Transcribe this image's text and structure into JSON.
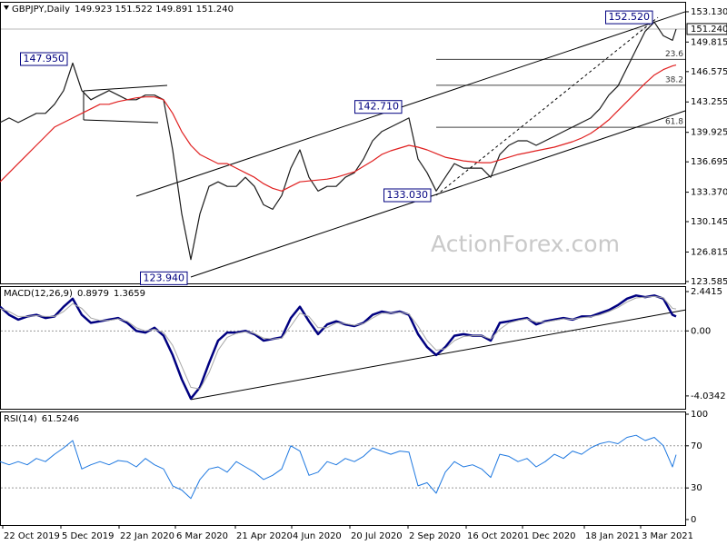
{
  "chart_data": [
    {
      "type": "line",
      "title": "GBPJPY,Daily",
      "subtitle": "149.923 151.522 149.891 151.240",
      "x": [
        0,
        5,
        10,
        15,
        20,
        25,
        30,
        35,
        40,
        45,
        50,
        55,
        60,
        65,
        70,
        75,
        80,
        85,
        90,
        95,
        100,
        105,
        110,
        115,
        120,
        125,
        130,
        135,
        140,
        145,
        150,
        155,
        160,
        165,
        170,
        175,
        180,
        185,
        190,
        195,
        200,
        205,
        210,
        215,
        220,
        225,
        230,
        235,
        240,
        245,
        250,
        255,
        260,
        265,
        270,
        275,
        280,
        285,
        290,
        295,
        300,
        305,
        310,
        315,
        320,
        325,
        330,
        335,
        340,
        345,
        350,
        355,
        360,
        365,
        370,
        372
      ],
      "xlim": [
        0,
        377
      ],
      "series": [
        {
          "color": "#1b1b1b",
          "width": 1.2,
          "values": [
            141,
            141.5,
            141,
            141.5,
            142,
            142,
            143,
            144.5,
            147.5,
            144.5,
            143.5,
            144,
            144.5,
            144,
            143.5,
            143.5,
            144,
            144,
            143.5,
            138,
            131,
            126,
            131,
            134,
            134.5,
            134,
            134,
            135,
            134,
            132,
            131.5,
            133,
            136,
            138,
            135,
            133.5,
            134,
            134,
            135,
            135.5,
            137,
            139,
            140,
            140.5,
            141,
            141.5,
            137,
            135.5,
            133.5,
            135,
            136.5,
            136,
            136,
            136,
            135,
            137.5,
            138.5,
            139,
            139,
            138.5,
            139,
            139.5,
            140,
            140.5,
            141,
            141.5,
            142.5,
            144,
            145,
            147,
            149,
            151,
            152,
            150.5,
            150,
            151.24
          ]
        },
        {
          "color": "#e02020",
          "width": 1.2,
          "values": [
            134.5,
            135.5,
            136.5,
            137.5,
            138.5,
            139.5,
            140.5,
            141,
            141.5,
            142,
            142.5,
            143,
            143,
            143.3,
            143.5,
            143.7,
            143.8,
            143.8,
            143.5,
            142,
            140,
            138.5,
            137.5,
            137,
            136.5,
            136.5,
            136,
            135.5,
            135,
            134.3,
            133.8,
            133.5,
            134,
            134.5,
            134.6,
            134.7,
            134.8,
            135,
            135.3,
            135.6,
            136.2,
            136.8,
            137.5,
            137.9,
            138.2,
            138.5,
            138.3,
            138,
            137.6,
            137.2,
            137,
            136.8,
            136.7,
            136.6,
            136.6,
            136.9,
            137.2,
            137.5,
            137.7,
            137.9,
            138.1,
            138.3,
            138.6,
            138.9,
            139.3,
            139.8,
            140.5,
            141.3,
            142.3,
            143.3,
            144.3,
            145.3,
            146.2,
            146.8,
            147.2,
            147.3
          ]
        }
      ],
      "ylim": [
        123.38,
        154.22
      ],
      "yticks": [
        {
          "value": 153.13,
          "label": "153.130"
        },
        149.815,
        146.575,
        143.255,
        139.925,
        136.695,
        {
          "value": 133.37,
          "label": "133.370"
        },
        130.145,
        126.815,
        123.585
      ],
      "current_price": {
        "value": 151.24,
        "label": "151.240"
      },
      "annotations": [
        {
          "value": 147.95,
          "label": "147.950",
          "x": 40
        },
        {
          "value": 123.94,
          "label": "123.940",
          "x": 106
        },
        {
          "value": 142.71,
          "label": "142.710",
          "x": 224
        },
        {
          "value": 133.03,
          "label": "133.030",
          "x": 240
        },
        {
          "value": 152.52,
          "label": "152.520",
          "x": 362
        }
      ],
      "fib": {
        "x": [
          240,
          377
        ],
        "levels": [
          {
            "ratio": 23.6,
            "price": 147.92
          },
          {
            "ratio": 38.2,
            "price": 145.075
          },
          {
            "ratio": 61.8,
            "price": 140.48
          }
        ]
      },
      "lines": [
        {
          "x": [
            75,
            377
          ],
          "values": [
            132.93,
            153.13
          ]
        },
        {
          "x": [
            105,
            377
          ],
          "values": [
            124.08,
            142.28
          ]
        },
        {
          "x": [
            240,
            362
          ],
          "values": [
            133.03,
            152.52
          ],
          "dash": true
        },
        {
          "x": [
            46,
            92
          ],
          "values": [
            144.47,
            145.07
          ]
        },
        {
          "x": [
            46,
            87
          ],
          "values": [
            141.29,
            140.99
          ]
        },
        {
          "x": [
            46,
            46
          ],
          "values": [
            144.47,
            141.29
          ]
        }
      ],
      "watermark": "ActionForex.com"
    },
    {
      "type": "line",
      "title": "MACD(12,26,9)",
      "x": [
        0,
        5,
        10,
        15,
        20,
        25,
        30,
        35,
        40,
        45,
        50,
        55,
        60,
        65,
        70,
        75,
        80,
        85,
        90,
        95,
        100,
        105,
        110,
        115,
        120,
        125,
        130,
        135,
        140,
        145,
        150,
        155,
        160,
        165,
        170,
        175,
        180,
        185,
        190,
        195,
        200,
        205,
        210,
        215,
        220,
        225,
        230,
        235,
        240,
        245,
        250,
        255,
        260,
        265,
        270,
        275,
        280,
        285,
        290,
        295,
        300,
        305,
        310,
        315,
        320,
        325,
        330,
        335,
        340,
        345,
        350,
        355,
        360,
        365,
        370,
        372
      ],
      "xlim": [
        0,
        377
      ],
      "series": [
        {
          "color": "#000080",
          "width": 2.5,
          "values": [
            1.5,
            1.0,
            0.7,
            0.9,
            1.0,
            0.8,
            0.9,
            1.5,
            2.0,
            1.0,
            0.5,
            0.6,
            0.7,
            0.8,
            0.5,
            0.0,
            -0.1,
            0.2,
            -0.3,
            -1.5,
            -3.0,
            -4.2,
            -3.5,
            -2.0,
            -0.6,
            -0.1,
            -0.1,
            0.0,
            -0.2,
            -0.6,
            -0.5,
            -0.4,
            0.8,
            1.5,
            0.6,
            -0.2,
            0.4,
            0.6,
            0.4,
            0.3,
            0.5,
            1.0,
            1.2,
            1.1,
            1.2,
            1.0,
            -0.2,
            -1.0,
            -1.5,
            -1.0,
            -0.3,
            -0.2,
            -0.3,
            -0.3,
            -0.6,
            0.5,
            0.6,
            0.7,
            0.8,
            0.4,
            0.6,
            0.7,
            0.8,
            0.7,
            0.9,
            0.9,
            1.1,
            1.3,
            1.6,
            2.0,
            2.2,
            2.1,
            2.2,
            2.0,
            1.0,
            0.8979
          ]
        },
        {
          "color": "#a8a8a8",
          "width": 1,
          "values": [
            1.4,
            1.2,
            0.9,
            0.9,
            0.95,
            0.9,
            0.9,
            1.2,
            1.7,
            1.4,
            0.8,
            0.65,
            0.65,
            0.75,
            0.6,
            0.2,
            0.0,
            0.1,
            -0.1,
            -0.9,
            -2.2,
            -3.5,
            -3.6,
            -2.6,
            -1.2,
            -0.4,
            -0.15,
            -0.05,
            -0.15,
            -0.45,
            -0.5,
            -0.45,
            0.3,
            1.1,
            0.9,
            0.2,
            0.2,
            0.5,
            0.45,
            0.35,
            0.45,
            0.8,
            1.1,
            1.1,
            1.15,
            1.05,
            0.3,
            -0.6,
            -1.2,
            -1.1,
            -0.6,
            -0.35,
            -0.3,
            -0.3,
            -0.5,
            0.1,
            0.5,
            0.65,
            0.75,
            0.55,
            0.55,
            0.65,
            0.75,
            0.72,
            0.82,
            0.88,
            1.0,
            1.2,
            1.45,
            1.8,
            2.05,
            2.1,
            2.15,
            2.05,
            1.4,
            1.3659
          ]
        }
      ],
      "ylim": [
        -4.83,
        2.78
      ],
      "yticks": [
        2.4415,
        {
          "value": 0,
          "label": "0.00"
        },
        -4.0342
      ],
      "dotted_levels": [
        0
      ],
      "lines": [
        {
          "x": [
            105,
            377
          ],
          "values": [
            -4.26,
            1.3
          ]
        }
      ]
    },
    {
      "type": "line",
      "title": "RSI(14)",
      "x": [
        0,
        5,
        10,
        15,
        20,
        25,
        30,
        35,
        40,
        45,
        50,
        55,
        60,
        65,
        70,
        75,
        80,
        85,
        90,
        95,
        100,
        105,
        110,
        115,
        120,
        125,
        130,
        135,
        140,
        145,
        150,
        155,
        160,
        165,
        170,
        175,
        180,
        185,
        190,
        195,
        200,
        205,
        210,
        215,
        220,
        225,
        230,
        235,
        240,
        245,
        250,
        255,
        260,
        265,
        270,
        275,
        280,
        285,
        290,
        295,
        300,
        305,
        310,
        315,
        320,
        325,
        330,
        335,
        340,
        345,
        350,
        355,
        360,
        365,
        370,
        372
      ],
      "xlim": [
        0,
        377
      ],
      "series": [
        {
          "color": "#1e78e0",
          "width": 1,
          "values": [
            55,
            52,
            55,
            52,
            58,
            55,
            62,
            68,
            75,
            48,
            52,
            55,
            52,
            56,
            55,
            50,
            58,
            52,
            48,
            32,
            28,
            20,
            38,
            48,
            50,
            45,
            55,
            50,
            45,
            38,
            42,
            48,
            70,
            65,
            42,
            45,
            55,
            52,
            58,
            55,
            60,
            68,
            65,
            62,
            65,
            64,
            32,
            35,
            25,
            45,
            55,
            50,
            52,
            48,
            40,
            62,
            60,
            55,
            58,
            50,
            55,
            62,
            58,
            65,
            62,
            68,
            72,
            74,
            72,
            78,
            80,
            75,
            78,
            70,
            50,
            61.5246
          ]
        }
      ],
      "ylim": [
        -5.2,
        102.6
      ],
      "yticks": [
        100,
        70,
        30,
        0
      ],
      "dotted_levels": [
        70,
        30
      ],
      "xticks": [
        {
          "value": 1,
          "label": "22 Oct 2019"
        },
        {
          "value": 33,
          "label": "5 Dec 2019"
        },
        {
          "value": 65,
          "label": "22 Jan 2020"
        },
        {
          "value": 96,
          "label": "6 Mar 2020"
        },
        {
          "value": 129,
          "label": "21 Apr 2020"
        },
        {
          "value": 160,
          "label": "4 Jun 2020"
        },
        {
          "value": 192,
          "label": "20 Jul 2020"
        },
        {
          "value": 224,
          "label": "2 Sep 2020"
        },
        {
          "value": 256,
          "label": "16 Oct 2020"
        },
        {
          "value": 287,
          "label": "1 Dec 2020"
        },
        {
          "value": 321,
          "label": "18 Jan 2021"
        },
        {
          "value": 352,
          "label": "3 Mar 2021"
        }
      ]
    }
  ]
}
